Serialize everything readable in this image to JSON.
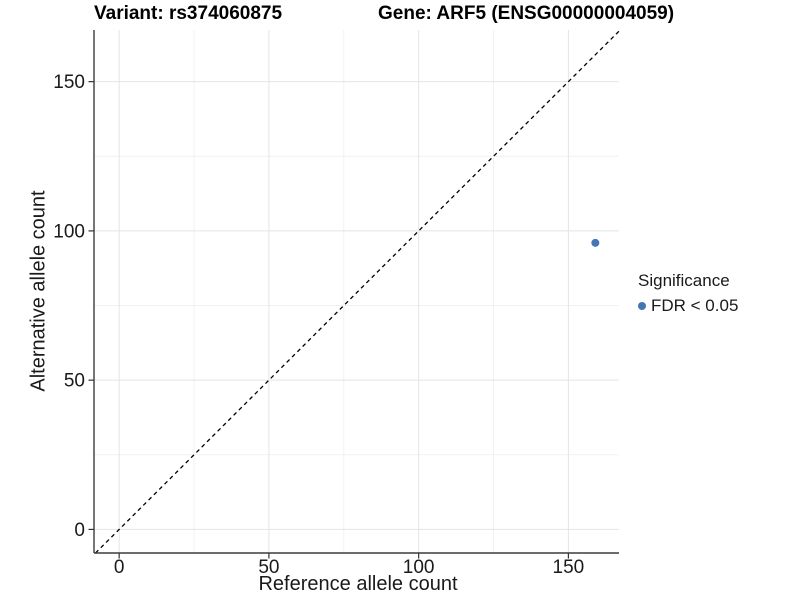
{
  "titles": {
    "variant": "Variant: rs374060875",
    "gene": "Gene: ARF5 (ENSG00000004059)"
  },
  "axes": {
    "x_label": "Reference allele count",
    "y_label": "Alternative allele count"
  },
  "legend": {
    "title": "Significance",
    "items": [
      {
        "label": "FDR < 0.05",
        "color": "#4575b4",
        "marker": "circle-point-icon"
      }
    ]
  },
  "colors": {
    "background": "#ffffff",
    "point": "#4575b4",
    "axis_line": "#3c3c3c",
    "tick_mark": "#333333",
    "tick_label": "#1a1a1a",
    "grid_major": "#e4e4e4",
    "grid_minor": "#f1f1f1",
    "identity_line": "#000000"
  },
  "chart_data": {
    "type": "scatter",
    "title": "Variant: rs374060875 | Gene: ARF5 (ENSG00000004059)",
    "xlabel": "Reference allele count",
    "ylabel": "Alternative allele count",
    "xlim": [
      -8.4,
      166.9
    ],
    "ylim": [
      -7.9,
      167.3
    ],
    "x_ticks": [
      0,
      50,
      100,
      150
    ],
    "y_ticks": [
      0,
      50,
      100,
      150
    ],
    "x_minor_ticks": [
      25,
      75,
      125
    ],
    "y_minor_ticks": [
      25,
      75,
      125
    ],
    "grid": true,
    "legend_position": "right",
    "series": [
      {
        "name": "FDR < 0.05",
        "color": "#4575b4",
        "points": [
          {
            "x": 159,
            "y": 96
          }
        ]
      }
    ],
    "reference_line": {
      "type": "identity",
      "slope": 1,
      "intercept": 0,
      "style": "dashed",
      "color": "#000000"
    }
  }
}
